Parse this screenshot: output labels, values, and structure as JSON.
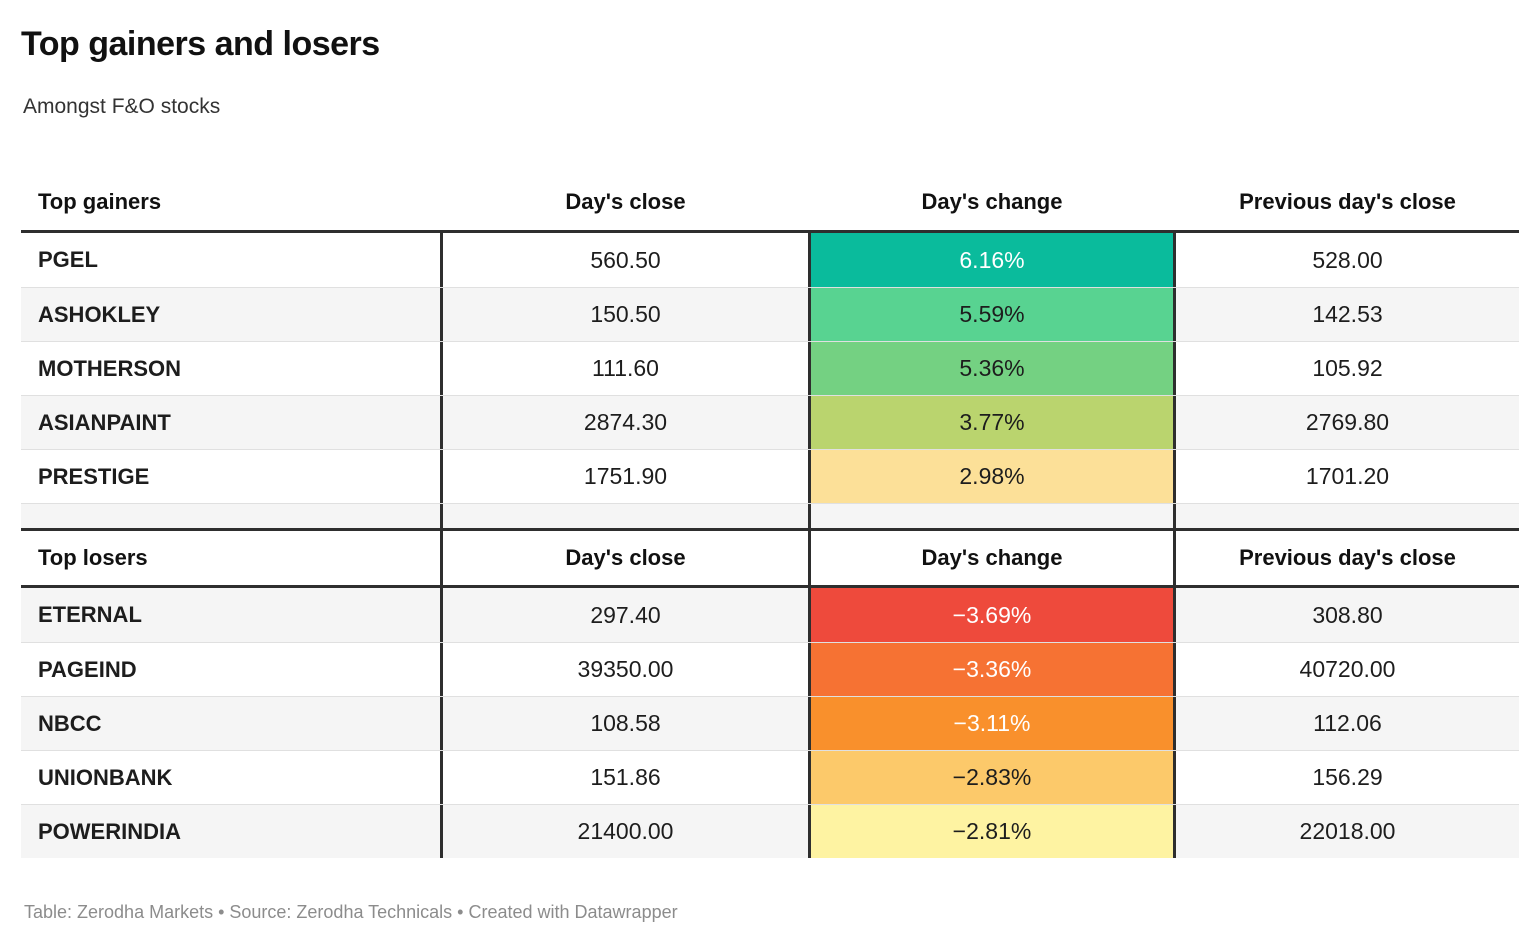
{
  "header": {
    "title": "Top gainers and losers",
    "subtitle": "Amongst F&O stocks"
  },
  "footer": {
    "text": "Table: Zerodha Markets • Source: Zerodha Technicals • Created with Datawrapper"
  },
  "colors": {
    "border_dark": "#2e2e2e",
    "row_alt_bg": "#f5f5f5",
    "divider": "#e0e0e0",
    "footer_text": "#8c8c8c"
  },
  "chart_data": [
    {
      "type": "table",
      "title": "Top gainers",
      "columns": [
        "Top gainers",
        "Day's close",
        "Day's change",
        "Previous day's close"
      ],
      "rows": [
        {
          "name": "PGEL",
          "close": "560.50",
          "change": "6.16%",
          "prev": "528.00",
          "cell_color": "#0abb9c",
          "text_color": "#ffffff"
        },
        {
          "name": "ASHOKLEY",
          "close": "150.50",
          "change": "5.59%",
          "prev": "142.53",
          "cell_color": "#58d391",
          "text_color": "#1d1d1d"
        },
        {
          "name": "MOTHERSON",
          "close": "111.60",
          "change": "5.36%",
          "prev": "105.92",
          "cell_color": "#74d182",
          "text_color": "#1d1d1d"
        },
        {
          "name": "ASIANPAINT",
          "close": "2874.30",
          "change": "3.77%",
          "prev": "2769.80",
          "cell_color": "#bad46e",
          "text_color": "#1d1d1d"
        },
        {
          "name": "PRESTIGE",
          "close": "1751.90",
          "change": "2.98%",
          "prev": "1701.20",
          "cell_color": "#fce098",
          "text_color": "#1d1d1d"
        }
      ]
    },
    {
      "type": "table",
      "title": "Top losers",
      "columns": [
        "Top losers",
        "Day's close",
        "Day's change",
        "Previous day's close"
      ],
      "rows": [
        {
          "name": "ETERNAL",
          "close": "297.40",
          "change": "−3.69%",
          "prev": "308.80",
          "cell_color": "#ee4a3c",
          "text_color": "#ffffff"
        },
        {
          "name": "PAGEIND",
          "close": "39350.00",
          "change": "−3.36%",
          "prev": "40720.00",
          "cell_color": "#f67233",
          "text_color": "#ffffff"
        },
        {
          "name": "NBCC",
          "close": "108.58",
          "change": "−3.11%",
          "prev": "112.06",
          "cell_color": "#f9902c",
          "text_color": "#ffffff"
        },
        {
          "name": "UNIONBANK",
          "close": "151.86",
          "change": "−2.83%",
          "prev": "156.29",
          "cell_color": "#fcc96a",
          "text_color": "#1d1d1d"
        },
        {
          "name": "POWERINDIA",
          "close": "21400.00",
          "change": "−2.81%",
          "prev": "22018.00",
          "cell_color": "#fef3a2",
          "text_color": "#1d1d1d"
        }
      ]
    }
  ]
}
